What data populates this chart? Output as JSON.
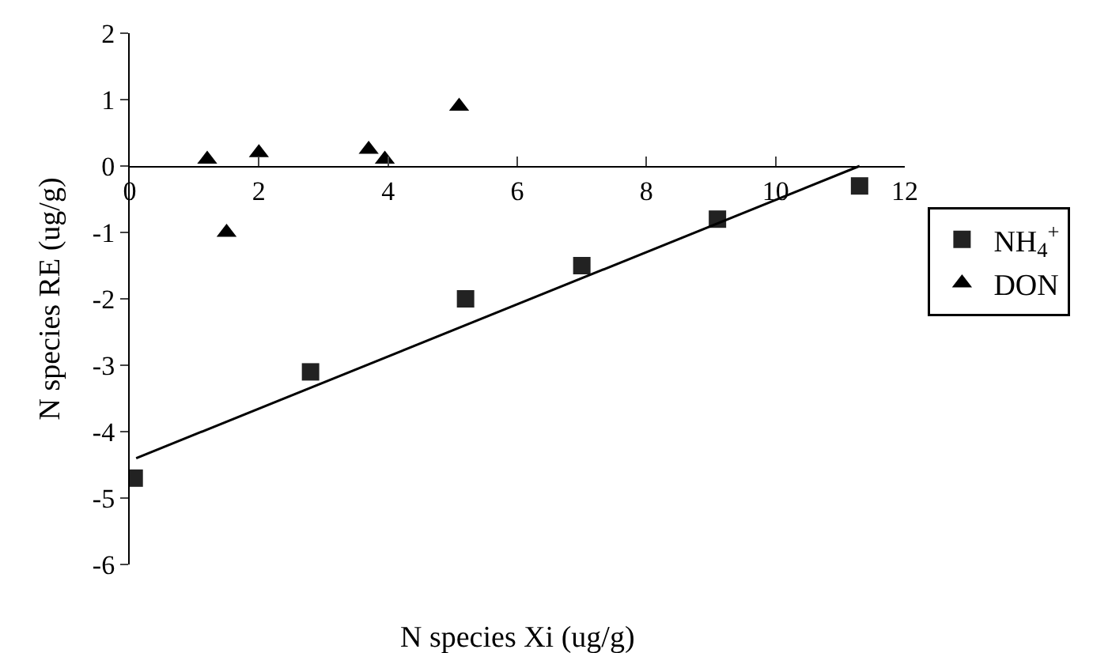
{
  "chart_data": {
    "type": "scatter",
    "xlabel": "N species Xi (ug/g)",
    "ylabel": "N species RE (ug/g)",
    "xlim": [
      0,
      12
    ],
    "xticks": [
      0,
      2,
      4,
      6,
      8,
      10,
      12
    ],
    "ylim": [
      -6,
      2
    ],
    "yticks": [
      -6,
      -5,
      -4,
      -3,
      -2,
      -1,
      0,
      1,
      2
    ],
    "legend": "right",
    "series": [
      {
        "name": "NH$_{4}$$^{+}$",
        "color": "#222222",
        "marker": "square",
        "x": [
          0.07,
          2.8,
          5.2,
          7.0,
          9.1,
          11.3
        ],
        "values": [
          -4.7,
          -3.1,
          -2.0,
          -1.5,
          -0.8,
          -0.3
        ]
      },
      {
        "name": "DON",
        "color": "#000000",
        "marker": "triangle",
        "x": [
          1.2,
          1.5,
          2.0,
          3.7,
          3.95,
          5.1
        ],
        "values": [
          0.1,
          -1.0,
          0.2,
          0.25,
          0.1,
          0.9
        ]
      },
      {
        "type": "line",
        "color": "#000000",
        "marker": "none",
        "line_style": "solid",
        "x": [
          0.1,
          11.3
        ],
        "values": [
          -4.4,
          0
        ]
      }
    ]
  }
}
